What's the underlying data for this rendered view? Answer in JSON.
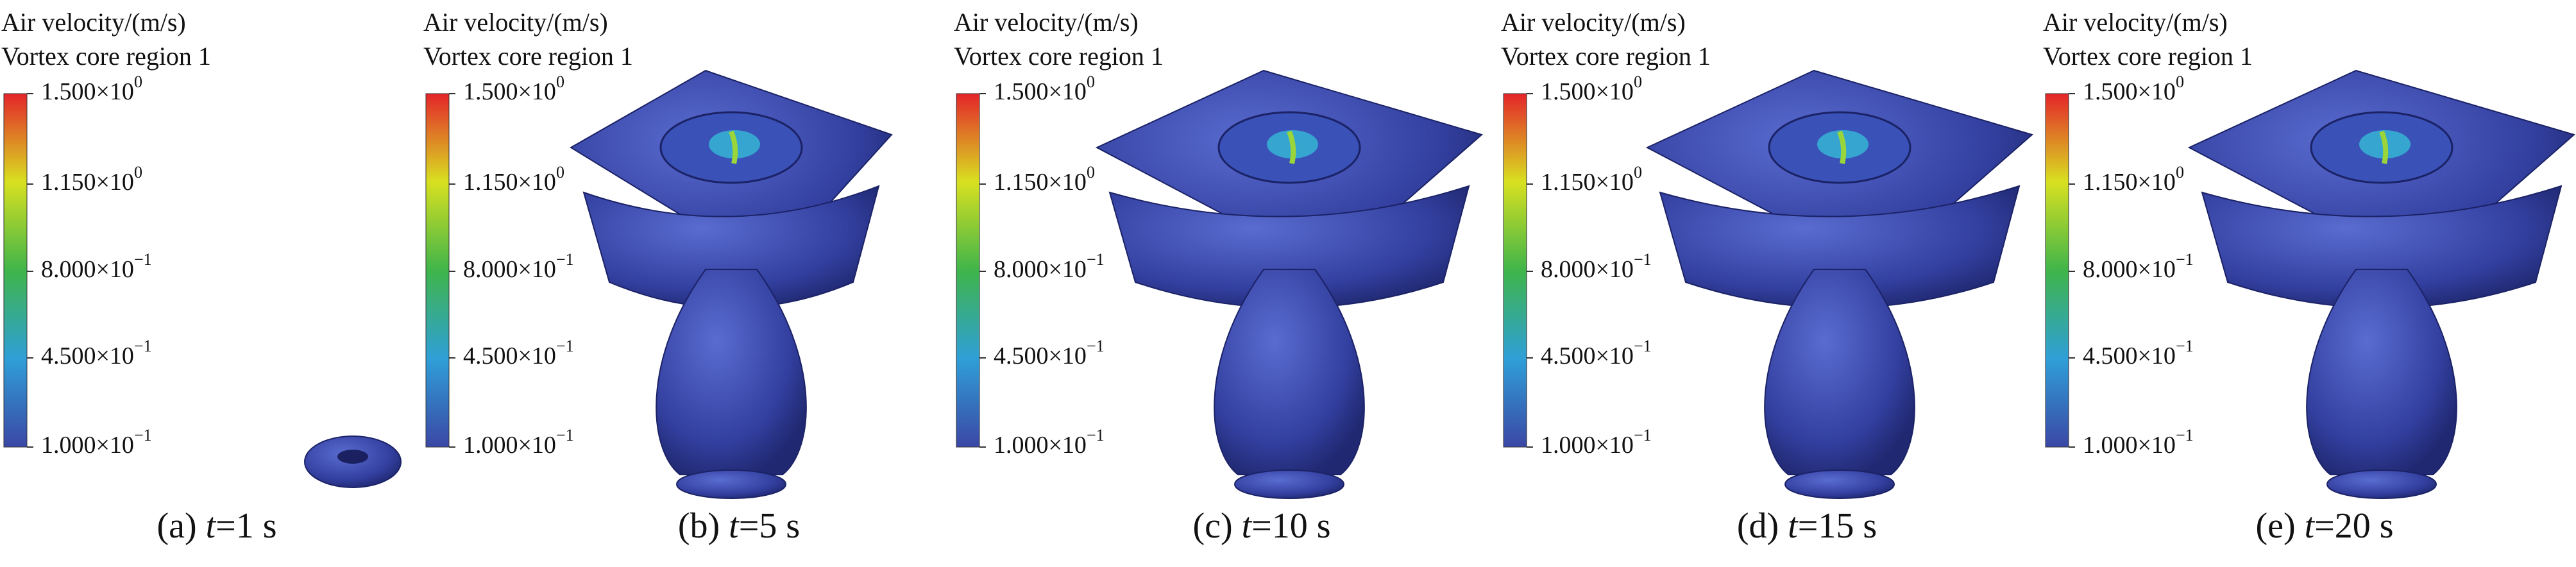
{
  "panels": [
    {
      "legend_title": "Air velocity/(m/s)",
      "legend_subtitle": "Vortex core region 1",
      "ticks": [
        {
          "mantissa": "1.500×10",
          "exponent": "0"
        },
        {
          "mantissa": "1.150×10",
          "exponent": "0"
        },
        {
          "mantissa": "8.000×10",
          "exponent": "−1"
        },
        {
          "mantissa": "4.500×10",
          "exponent": "−1"
        },
        {
          "mantissa": "1.000×10",
          "exponent": "−1"
        }
      ],
      "caption": {
        "label": "(a)",
        "variable": "t",
        "value": "=1 s"
      }
    },
    {
      "legend_title": "Air velocity/(m/s)",
      "legend_subtitle": "Vortex core region 1",
      "ticks": [
        {
          "mantissa": "1.500×10",
          "exponent": "0"
        },
        {
          "mantissa": "1.150×10",
          "exponent": "0"
        },
        {
          "mantissa": "8.000×10",
          "exponent": "−1"
        },
        {
          "mantissa": "4.500×10",
          "exponent": "−1"
        },
        {
          "mantissa": "1.000×10",
          "exponent": "−1"
        }
      ],
      "caption": {
        "label": "(b)",
        "variable": "t",
        "value": "=5 s"
      }
    },
    {
      "legend_title": "Air velocity/(m/s)",
      "legend_subtitle": "Vortex core region 1",
      "ticks": [
        {
          "mantissa": "1.500×10",
          "exponent": "0"
        },
        {
          "mantissa": "1.150×10",
          "exponent": "0"
        },
        {
          "mantissa": "8.000×10",
          "exponent": "−1"
        },
        {
          "mantissa": "4.500×10",
          "exponent": "−1"
        },
        {
          "mantissa": "1.000×10",
          "exponent": "−1"
        }
      ],
      "caption": {
        "label": "(c)",
        "variable": "t",
        "value": "=10 s"
      }
    },
    {
      "legend_title": "Air velocity/(m/s)",
      "legend_subtitle": "Vortex core region 1",
      "ticks": [
        {
          "mantissa": "1.500×10",
          "exponent": "0"
        },
        {
          "mantissa": "1.150×10",
          "exponent": "0"
        },
        {
          "mantissa": "8.000×10",
          "exponent": "−1"
        },
        {
          "mantissa": "4.500×10",
          "exponent": "−1"
        },
        {
          "mantissa": "1.000×10",
          "exponent": "−1"
        }
      ],
      "caption": {
        "label": "(d)",
        "variable": "t",
        "value": "=15 s"
      }
    },
    {
      "legend_title": "Air velocity/(m/s)",
      "legend_subtitle": "Vortex core region 1",
      "ticks": [
        {
          "mantissa": "1.500×10",
          "exponent": "0"
        },
        {
          "mantissa": "1.150×10",
          "exponent": "0"
        },
        {
          "mantissa": "8.000×10",
          "exponent": "−1"
        },
        {
          "mantissa": "4.500×10",
          "exponent": "−1"
        },
        {
          "mantissa": "1.000×10",
          "exponent": "−1"
        }
      ],
      "caption": {
        "label": "(e)",
        "variable": "t",
        "value": "=20 s"
      }
    }
  ]
}
